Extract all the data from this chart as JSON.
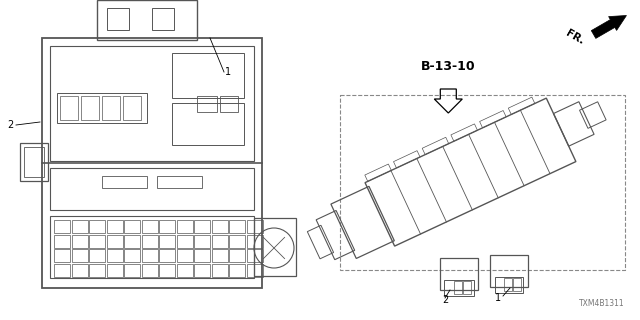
{
  "bg_color": "#ffffff",
  "diagram_number": "B-13-10",
  "part_number": "TXM4B1311",
  "fr_label": "FR.",
  "gray": "#555555",
  "lgray": "#888888",
  "dgray": "#333333"
}
